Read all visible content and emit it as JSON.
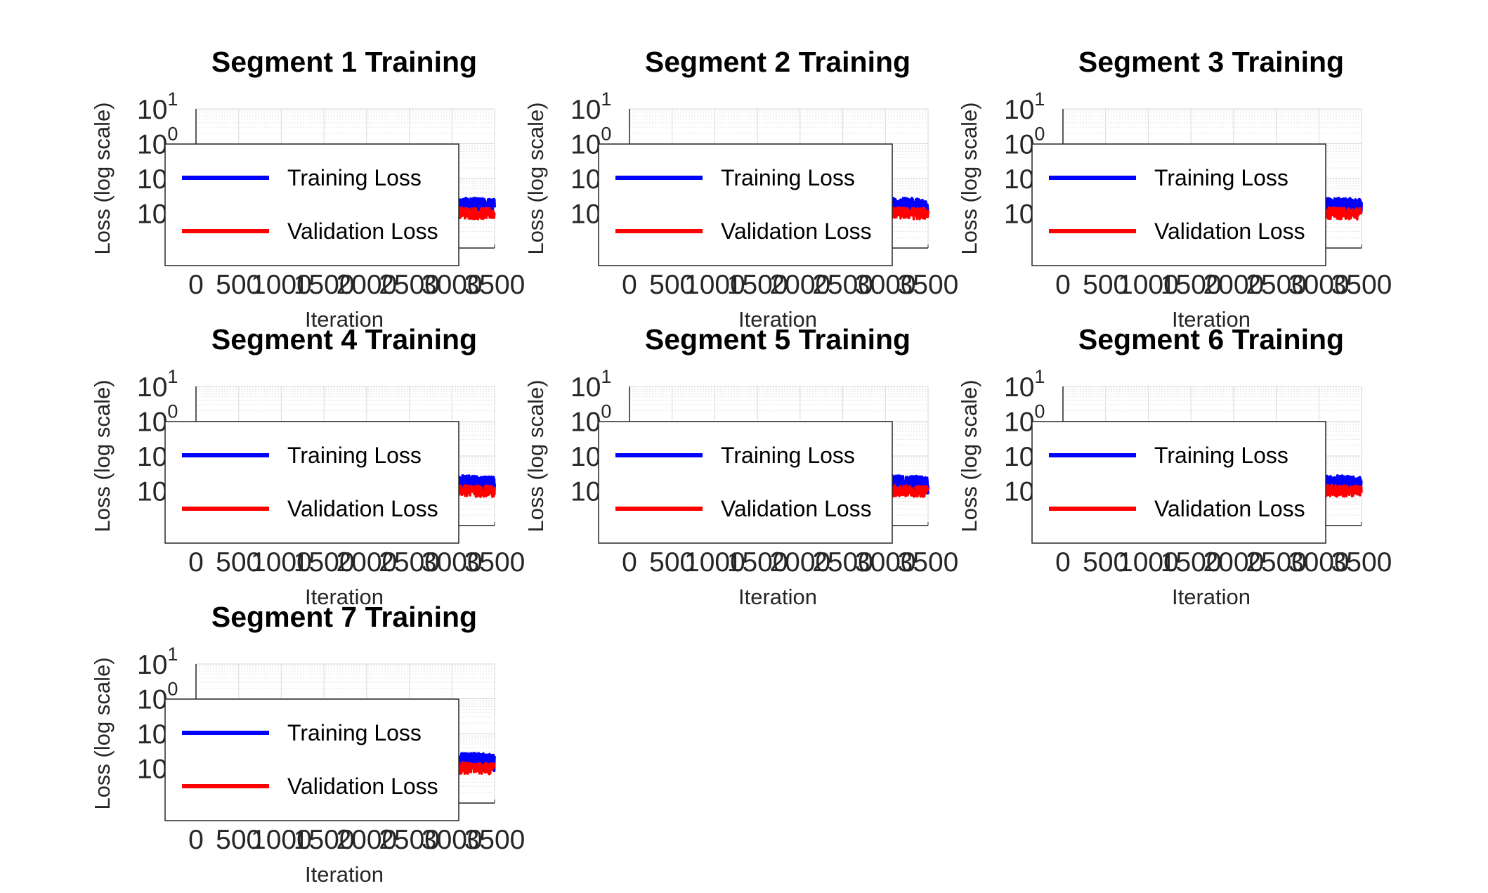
{
  "chart_data": [
    {
      "type": "line",
      "title": "Segment 1 Training",
      "xlabel": "Iteration",
      "ylabel": "Loss (log scale)",
      "yscale": "log",
      "xlim": [
        0,
        3500
      ],
      "ylim": [
        0.001,
        10
      ],
      "x_ticks": [
        "0",
        "500",
        "1000",
        "1500",
        "2000",
        "2500",
        "3000",
        "3500"
      ],
      "y_ticks": [
        {
          "base": "10",
          "exp": "1"
        },
        {
          "base": "10",
          "exp": "0"
        },
        {
          "base": "10",
          "exp": "-1"
        },
        {
          "base": "10",
          "exp": "-2"
        }
      ],
      "grid": true,
      "legend_position": "inside-west",
      "series": [
        {
          "name": "Training Loss",
          "color": "#0000ff",
          "x": [
            1500,
            2000,
            2500,
            2700,
            2900,
            3100,
            3300,
            3500
          ],
          "y": [
            0.02,
            0.02,
            0.019,
            0.018,
            0.017,
            0.016,
            0.016,
            0.015
          ],
          "spread": [
            0.011,
            0.034
          ]
        },
        {
          "name": "Validation Loss",
          "color": "#ff0000",
          "x": [
            1500,
            2000,
            2500,
            2700,
            2900,
            3100,
            3300,
            3500
          ],
          "y": [
            0.014,
            0.0135,
            0.013,
            0.0125,
            0.012,
            0.0115,
            0.011,
            0.011
          ],
          "spread": [
            0.0085,
            0.018
          ]
        }
      ]
    },
    {
      "type": "line",
      "title": "Segment 2 Training",
      "xlabel": "Iteration",
      "ylabel": "Loss (log scale)",
      "yscale": "log",
      "xlim": [
        0,
        3500
      ],
      "ylim": [
        0.001,
        10
      ],
      "x_ticks": [
        "0",
        "500",
        "1000",
        "1500",
        "2000",
        "2500",
        "3000",
        "3500"
      ],
      "y_ticks": [
        {
          "base": "10",
          "exp": "1"
        },
        {
          "base": "10",
          "exp": "0"
        },
        {
          "base": "10",
          "exp": "-1"
        },
        {
          "base": "10",
          "exp": "-2"
        }
      ],
      "grid": true,
      "legend_position": "inside-west",
      "series": [
        {
          "name": "Training Loss",
          "color": "#0000ff",
          "x": [
            1500,
            2000,
            2500,
            2700,
            2900,
            3100,
            3300,
            3500
          ],
          "y": [
            0.02,
            0.02,
            0.019,
            0.018,
            0.017,
            0.016,
            0.016,
            0.015
          ],
          "spread": [
            0.011,
            0.034
          ]
        },
        {
          "name": "Validation Loss",
          "color": "#ff0000",
          "x": [
            1500,
            2000,
            2500,
            2700,
            2900,
            3100,
            3300,
            3500
          ],
          "y": [
            0.014,
            0.0135,
            0.013,
            0.0125,
            0.012,
            0.0115,
            0.011,
            0.011
          ],
          "spread": [
            0.0085,
            0.018
          ]
        }
      ]
    },
    {
      "type": "line",
      "title": "Segment 3 Training",
      "xlabel": "Iteration",
      "ylabel": "Loss (log scale)",
      "yscale": "log",
      "xlim": [
        0,
        3500
      ],
      "ylim": [
        0.001,
        10
      ],
      "x_ticks": [
        "0",
        "500",
        "1000",
        "1500",
        "2000",
        "2500",
        "3000",
        "3500"
      ],
      "y_ticks": [
        {
          "base": "10",
          "exp": "1"
        },
        {
          "base": "10",
          "exp": "0"
        },
        {
          "base": "10",
          "exp": "-1"
        },
        {
          "base": "10",
          "exp": "-2"
        }
      ],
      "grid": true,
      "legend_position": "inside-west",
      "series": [
        {
          "name": "Training Loss",
          "color": "#0000ff",
          "x": [
            1500,
            2000,
            2500,
            2700,
            2900,
            3100,
            3300,
            3500
          ],
          "y": [
            0.02,
            0.02,
            0.019,
            0.018,
            0.017,
            0.016,
            0.016,
            0.015
          ],
          "spread": [
            0.011,
            0.034
          ]
        },
        {
          "name": "Validation Loss",
          "color": "#ff0000",
          "x": [
            1500,
            2000,
            2500,
            2700,
            2900,
            3100,
            3300,
            3500
          ],
          "y": [
            0.014,
            0.0135,
            0.013,
            0.0125,
            0.012,
            0.0115,
            0.011,
            0.011
          ],
          "spread": [
            0.0085,
            0.018
          ]
        }
      ]
    },
    {
      "type": "line",
      "title": "Segment 4 Training",
      "xlabel": "Iteration",
      "ylabel": "Loss (log scale)",
      "yscale": "log",
      "xlim": [
        0,
        3500
      ],
      "ylim": [
        0.001,
        10
      ],
      "x_ticks": [
        "0",
        "500",
        "1000",
        "1500",
        "2000",
        "2500",
        "3000",
        "3500"
      ],
      "y_ticks": [
        {
          "base": "10",
          "exp": "1"
        },
        {
          "base": "10",
          "exp": "0"
        },
        {
          "base": "10",
          "exp": "-1"
        },
        {
          "base": "10",
          "exp": "-2"
        }
      ],
      "grid": true,
      "legend_position": "inside-west",
      "series": [
        {
          "name": "Training Loss",
          "color": "#0000ff",
          "x": [
            1500,
            2000,
            2500,
            2700,
            2900,
            3100,
            3300,
            3500
          ],
          "y": [
            0.02,
            0.02,
            0.019,
            0.018,
            0.017,
            0.016,
            0.016,
            0.015
          ],
          "spread": [
            0.011,
            0.034
          ]
        },
        {
          "name": "Validation Loss",
          "color": "#ff0000",
          "x": [
            1500,
            2000,
            2500,
            2700,
            2900,
            3100,
            3300,
            3500
          ],
          "y": [
            0.014,
            0.0135,
            0.013,
            0.0125,
            0.012,
            0.0115,
            0.011,
            0.011
          ],
          "spread": [
            0.0085,
            0.018
          ]
        }
      ]
    },
    {
      "type": "line",
      "title": "Segment 5 Training",
      "xlabel": "Iteration",
      "ylabel": "Loss (log scale)",
      "yscale": "log",
      "xlim": [
        0,
        3500
      ],
      "ylim": [
        0.001,
        10
      ],
      "x_ticks": [
        "0",
        "500",
        "1000",
        "1500",
        "2000",
        "2500",
        "3000",
        "3500"
      ],
      "y_ticks": [
        {
          "base": "10",
          "exp": "1"
        },
        {
          "base": "10",
          "exp": "0"
        },
        {
          "base": "10",
          "exp": "-1"
        },
        {
          "base": "10",
          "exp": "-2"
        }
      ],
      "grid": true,
      "legend_position": "inside-west",
      "series": [
        {
          "name": "Training Loss",
          "color": "#0000ff",
          "x": [
            1500,
            2000,
            2500,
            2700,
            2900,
            3100,
            3300,
            3500
          ],
          "y": [
            0.02,
            0.02,
            0.019,
            0.018,
            0.017,
            0.016,
            0.016,
            0.015
          ],
          "spread": [
            0.011,
            0.034
          ]
        },
        {
          "name": "Validation Loss",
          "color": "#ff0000",
          "x": [
            1500,
            2000,
            2500,
            2700,
            2900,
            3100,
            3300,
            3500
          ],
          "y": [
            0.014,
            0.0135,
            0.013,
            0.0125,
            0.012,
            0.0115,
            0.011,
            0.011
          ],
          "spread": [
            0.0085,
            0.018
          ]
        }
      ]
    },
    {
      "type": "line",
      "title": "Segment 6 Training",
      "xlabel": "Iteration",
      "ylabel": "Loss (log scale)",
      "yscale": "log",
      "xlim": [
        0,
        3500
      ],
      "ylim": [
        0.001,
        10
      ],
      "x_ticks": [
        "0",
        "500",
        "1000",
        "1500",
        "2000",
        "2500",
        "3000",
        "3500"
      ],
      "y_ticks": [
        {
          "base": "10",
          "exp": "1"
        },
        {
          "base": "10",
          "exp": "0"
        },
        {
          "base": "10",
          "exp": "-1"
        },
        {
          "base": "10",
          "exp": "-2"
        }
      ],
      "grid": true,
      "legend_position": "inside-west",
      "series": [
        {
          "name": "Training Loss",
          "color": "#0000ff",
          "x": [
            1500,
            2000,
            2500,
            2700,
            2900,
            3100,
            3300,
            3500
          ],
          "y": [
            0.02,
            0.02,
            0.019,
            0.018,
            0.017,
            0.016,
            0.016,
            0.015
          ],
          "spread": [
            0.011,
            0.034
          ]
        },
        {
          "name": "Validation Loss",
          "color": "#ff0000",
          "x": [
            1500,
            2000,
            2500,
            2700,
            2900,
            3100,
            3300,
            3500
          ],
          "y": [
            0.014,
            0.0135,
            0.013,
            0.0125,
            0.012,
            0.0115,
            0.011,
            0.011
          ],
          "spread": [
            0.0085,
            0.018
          ]
        }
      ]
    },
    {
      "type": "line",
      "title": "Segment 7 Training",
      "xlabel": "Iteration",
      "ylabel": "Loss (log scale)",
      "yscale": "log",
      "xlim": [
        0,
        3500
      ],
      "ylim": [
        0.001,
        10
      ],
      "x_ticks": [
        "0",
        "500",
        "1000",
        "1500",
        "2000",
        "2500",
        "3000",
        "3500"
      ],
      "y_ticks": [
        {
          "base": "10",
          "exp": "1"
        },
        {
          "base": "10",
          "exp": "0"
        },
        {
          "base": "10",
          "exp": "-1"
        },
        {
          "base": "10",
          "exp": "-2"
        }
      ],
      "grid": true,
      "legend_position": "inside-west",
      "series": [
        {
          "name": "Training Loss",
          "color": "#0000ff",
          "x": [
            1500,
            2000,
            2500,
            2700,
            2900,
            3100,
            3300,
            3500
          ],
          "y": [
            0.02,
            0.02,
            0.019,
            0.018,
            0.017,
            0.016,
            0.016,
            0.015
          ],
          "spread": [
            0.011,
            0.034
          ]
        },
        {
          "name": "Validation Loss",
          "color": "#ff0000",
          "x": [
            1500,
            2000,
            2500,
            2700,
            2900,
            3100,
            3300,
            3500
          ],
          "y": [
            0.014,
            0.0135,
            0.013,
            0.0125,
            0.012,
            0.0115,
            0.011,
            0.011
          ],
          "spread": [
            0.0085,
            0.018
          ]
        }
      ]
    }
  ]
}
